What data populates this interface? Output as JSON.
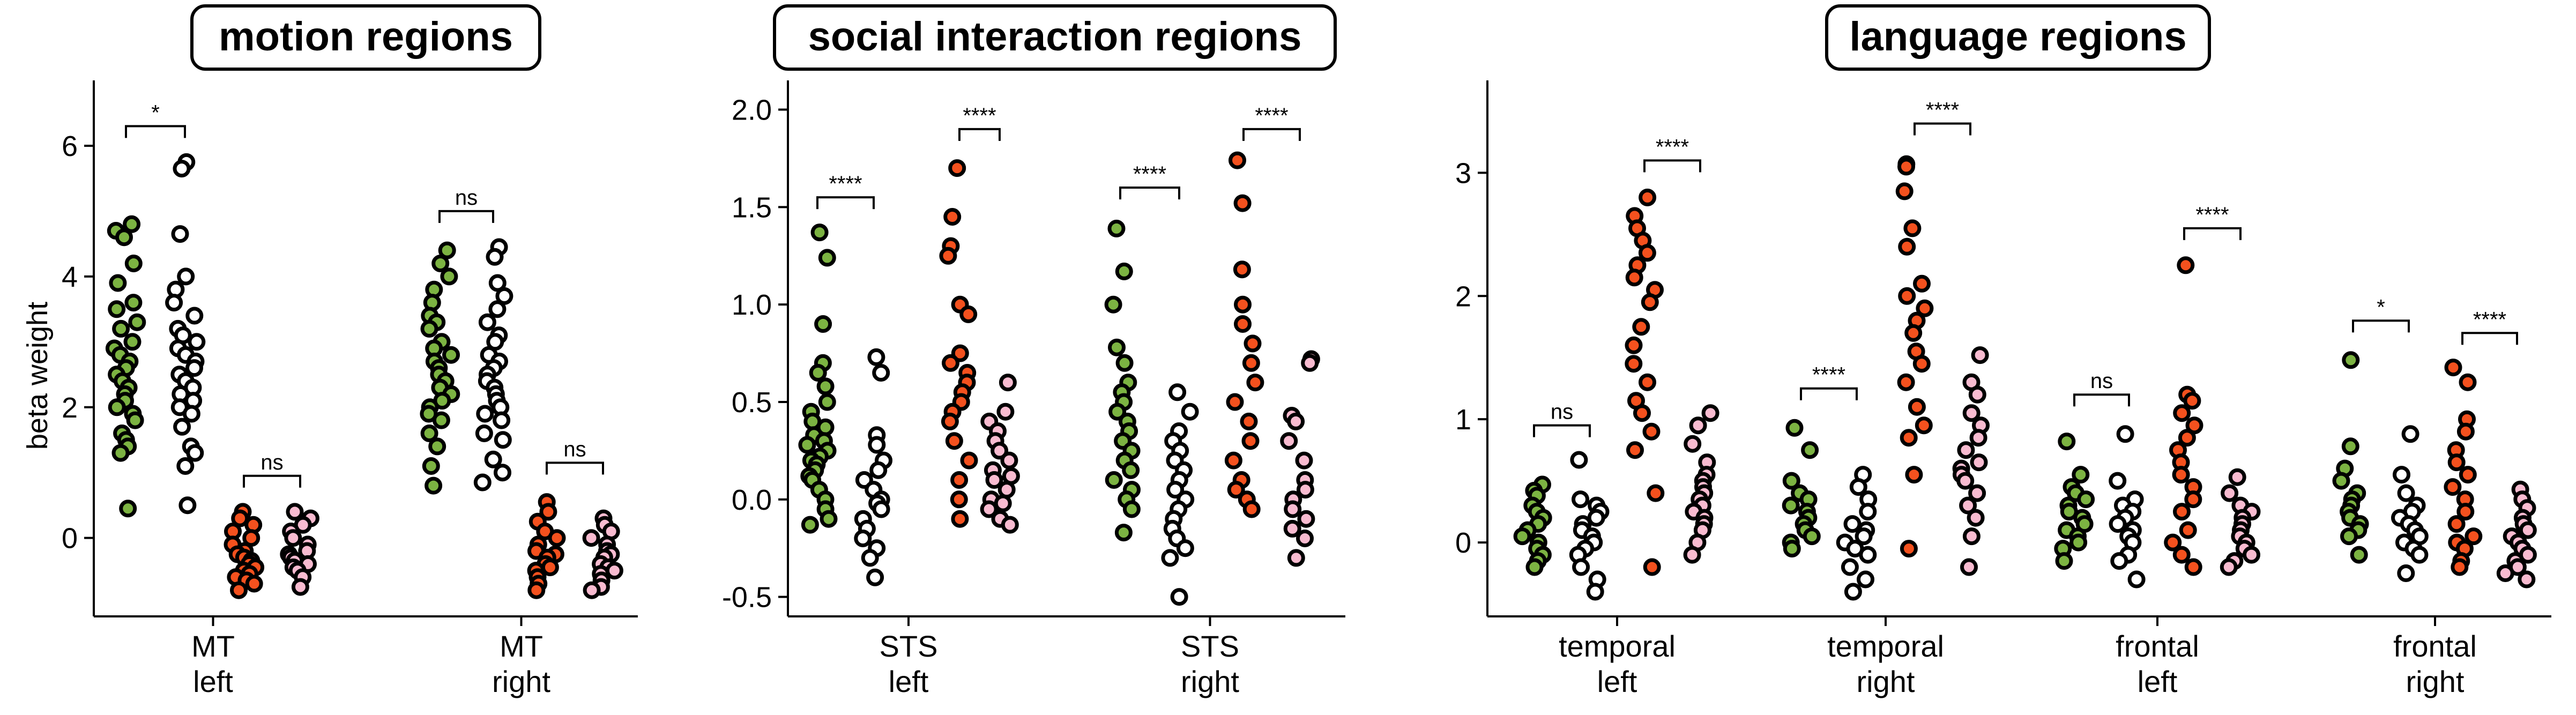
{
  "ylabel": "beta weight",
  "colors": {
    "green": "#7cb342",
    "orange": "#f4511e",
    "white": "#ffffff",
    "pink": "#f8bbd0",
    "edge": "#000000"
  },
  "chart_data": [
    {
      "type": "strip",
      "title": "motion regions",
      "ylabel": "beta weight",
      "ylim": [
        -1.2,
        7.0
      ],
      "yticks": [
        0,
        2,
        4,
        6
      ],
      "groups": [
        {
          "label": [
            "MT",
            "left"
          ],
          "columns": [
            {
              "fill": "green",
              "values": [
                4.8,
                4.7,
                4.6,
                4.2,
                3.9,
                3.6,
                3.5,
                3.3,
                3.2,
                3.0,
                2.9,
                2.8,
                2.7,
                2.6,
                2.5,
                2.4,
                2.3,
                2.2,
                2.1,
                2.0,
                1.9,
                1.8,
                1.6,
                1.5,
                1.4,
                1.3,
                0.45
              ]
            },
            {
              "fill": "white",
              "values": [
                5.75,
                5.65,
                4.65,
                4.0,
                3.8,
                3.6,
                3.4,
                3.2,
                3.1,
                3.0,
                2.9,
                2.8,
                2.7,
                2.6,
                2.5,
                2.4,
                2.3,
                2.2,
                2.1,
                2.0,
                1.9,
                1.7,
                1.4,
                1.3,
                1.1,
                0.5
              ]
            },
            {
              "fill": "orange",
              "values": [
                0.4,
                0.3,
                0.2,
                0.1,
                0.0,
                -0.1,
                -0.2,
                -0.25,
                -0.3,
                -0.35,
                -0.4,
                -0.45,
                -0.5,
                -0.55,
                -0.6,
                -0.65,
                -0.7,
                -0.8
              ]
            },
            {
              "fill": "pink",
              "values": [
                0.4,
                0.3,
                0.2,
                0.1,
                0.0,
                -0.1,
                -0.2,
                -0.25,
                -0.3,
                -0.35,
                -0.4,
                -0.45,
                -0.5,
                -0.6,
                -0.75
              ]
            }
          ]
        },
        {
          "label": [
            "MT",
            "right"
          ],
          "columns": [
            {
              "fill": "green",
              "values": [
                4.4,
                4.2,
                4.0,
                3.8,
                3.6,
                3.4,
                3.3,
                3.2,
                3.0,
                2.9,
                2.8,
                2.7,
                2.6,
                2.5,
                2.4,
                2.3,
                2.2,
                2.1,
                2.0,
                1.9,
                1.8,
                1.6,
                1.4,
                1.1,
                0.8
              ]
            },
            {
              "fill": "white",
              "values": [
                4.45,
                4.3,
                3.9,
                3.7,
                3.5,
                3.3,
                3.1,
                3.0,
                2.8,
                2.7,
                2.6,
                2.5,
                2.4,
                2.3,
                2.2,
                2.1,
                2.0,
                1.9,
                1.8,
                1.6,
                1.5,
                1.2,
                1.0,
                0.85
              ]
            },
            {
              "fill": "orange",
              "values": [
                0.55,
                0.4,
                0.25,
                0.1,
                0.0,
                -0.1,
                -0.2,
                -0.25,
                -0.3,
                -0.4,
                -0.45,
                -0.5,
                -0.6,
                -0.7,
                -0.8
              ]
            },
            {
              "fill": "pink",
              "values": [
                0.3,
                0.2,
                0.1,
                0.0,
                -0.1,
                -0.2,
                -0.25,
                -0.3,
                -0.4,
                -0.45,
                -0.5,
                -0.55,
                -0.65,
                -0.75,
                -0.8
              ]
            }
          ]
        }
      ],
      "brackets": [
        {
          "group": 0,
          "from": 0,
          "to": 1,
          "label": "*",
          "y": 6.3
        },
        {
          "group": 0,
          "from": 2,
          "to": 3,
          "label": "ns",
          "y": 0.95
        },
        {
          "group": 1,
          "from": 0,
          "to": 1,
          "label": "ns",
          "y": 5.0
        },
        {
          "group": 1,
          "from": 2,
          "to": 3,
          "label": "ns",
          "y": 1.15
        }
      ]
    },
    {
      "type": "strip",
      "title": "social interaction regions",
      "ylabel": "",
      "ylim": [
        -0.6,
        2.15
      ],
      "yticks": [
        -0.5,
        0.0,
        0.5,
        1.0,
        1.5,
        2.0
      ],
      "groups": [
        {
          "label": [
            "STS",
            "left"
          ],
          "columns": [
            {
              "fill": "green",
              "values": [
                1.37,
                1.24,
                0.9,
                0.7,
                0.65,
                0.58,
                0.5,
                0.45,
                0.4,
                0.37,
                0.33,
                0.3,
                0.28,
                0.25,
                0.22,
                0.2,
                0.18,
                0.15,
                0.12,
                0.1,
                0.05,
                0.0,
                -0.05,
                -0.1,
                -0.13
              ]
            },
            {
              "fill": "white",
              "values": [
                0.73,
                0.65,
                0.33,
                0.28,
                0.2,
                0.15,
                0.1,
                0.05,
                0.0,
                -0.02,
                -0.05,
                -0.1,
                -0.15,
                -0.2,
                -0.25,
                -0.3,
                -0.4
              ]
            },
            {
              "fill": "orange",
              "values": [
                1.7,
                1.45,
                1.3,
                1.25,
                1.0,
                0.95,
                0.75,
                0.7,
                0.65,
                0.6,
                0.55,
                0.5,
                0.45,
                0.4,
                0.3,
                0.2,
                0.1,
                0.0,
                -0.1
              ]
            },
            {
              "fill": "pink",
              "values": [
                0.6,
                0.45,
                0.4,
                0.35,
                0.3,
                0.25,
                0.2,
                0.15,
                0.12,
                0.1,
                0.05,
                0.0,
                -0.02,
                -0.05,
                -0.1,
                -0.13
              ]
            }
          ]
        },
        {
          "label": [
            "STS",
            "right"
          ],
          "columns": [
            {
              "fill": "green",
              "values": [
                1.39,
                1.17,
                1.0,
                0.78,
                0.7,
                0.6,
                0.55,
                0.5,
                0.45,
                0.4,
                0.35,
                0.3,
                0.25,
                0.2,
                0.15,
                0.1,
                0.05,
                0.0,
                -0.05,
                -0.17
              ]
            },
            {
              "fill": "white",
              "values": [
                0.55,
                0.45,
                0.35,
                0.3,
                0.25,
                0.2,
                0.15,
                0.1,
                0.05,
                0.0,
                -0.05,
                -0.1,
                -0.15,
                -0.2,
                -0.25,
                -0.3,
                -0.5
              ]
            },
            {
              "fill": "orange",
              "values": [
                1.74,
                1.52,
                1.18,
                1.0,
                0.9,
                0.8,
                0.7,
                0.6,
                0.5,
                0.4,
                0.3,
                0.2,
                0.1,
                0.05,
                0.0,
                -0.05
              ]
            },
            {
              "fill": "pink",
              "values": [
                0.72,
                0.7,
                0.43,
                0.4,
                0.3,
                0.2,
                0.1,
                0.05,
                0.0,
                -0.05,
                -0.1,
                -0.15,
                -0.2,
                -0.3
              ]
            }
          ]
        }
      ],
      "brackets": [
        {
          "group": 0,
          "from": 0,
          "to": 1,
          "label": "****",
          "y": 1.55
        },
        {
          "group": 0,
          "from": 2,
          "to": 3,
          "label": "****",
          "y": 1.9
        },
        {
          "group": 1,
          "from": 0,
          "to": 1,
          "label": "****",
          "y": 1.6
        },
        {
          "group": 1,
          "from": 2,
          "to": 3,
          "label": "****",
          "y": 1.9
        }
      ]
    },
    {
      "type": "strip",
      "title": "language regions",
      "ylabel": "",
      "ylim": [
        -0.6,
        3.75
      ],
      "yticks": [
        0,
        1,
        2,
        3
      ],
      "groups": [
        {
          "label": [
            "temporal",
            "left"
          ],
          "columns": [
            {
              "fill": "green",
              "values": [
                0.47,
                0.42,
                0.38,
                0.3,
                0.25,
                0.2,
                0.15,
                0.1,
                0.05,
                0.0,
                -0.05,
                -0.1,
                -0.15,
                -0.2
              ]
            },
            {
              "fill": "white",
              "values": [
                0.67,
                0.35,
                0.3,
                0.25,
                0.2,
                0.15,
                0.1,
                0.05,
                0.0,
                -0.05,
                -0.1,
                -0.2,
                -0.3,
                -0.4
              ]
            },
            {
              "fill": "orange",
              "values": [
                2.8,
                2.65,
                2.55,
                2.45,
                2.35,
                2.25,
                2.15,
                2.05,
                1.95,
                1.75,
                1.6,
                1.45,
                1.3,
                1.15,
                1.05,
                0.9,
                0.75,
                0.4,
                -0.2
              ]
            },
            {
              "fill": "pink",
              "values": [
                1.05,
                0.95,
                0.8,
                0.65,
                0.55,
                0.5,
                0.45,
                0.4,
                0.35,
                0.3,
                0.25,
                0.2,
                0.15,
                0.1,
                0.0,
                -0.1
              ]
            }
          ]
        },
        {
          "label": [
            "temporal",
            "right"
          ],
          "columns": [
            {
              "fill": "green",
              "values": [
                0.93,
                0.75,
                0.5,
                0.4,
                0.35,
                0.3,
                0.25,
                0.2,
                0.15,
                0.1,
                0.05,
                0.0,
                -0.05
              ]
            },
            {
              "fill": "white",
              "values": [
                0.55,
                0.45,
                0.35,
                0.25,
                0.15,
                0.1,
                0.05,
                0.0,
                -0.05,
                -0.1,
                -0.2,
                -0.3,
                -0.4
              ]
            },
            {
              "fill": "orange",
              "values": [
                3.07,
                3.05,
                2.85,
                2.55,
                2.4,
                2.1,
                2.0,
                1.9,
                1.8,
                1.7,
                1.55,
                1.45,
                1.3,
                1.1,
                0.95,
                0.85,
                0.55,
                -0.05
              ]
            },
            {
              "fill": "pink",
              "values": [
                1.52,
                1.3,
                1.2,
                1.05,
                0.95,
                0.85,
                0.75,
                0.65,
                0.6,
                0.55,
                0.5,
                0.4,
                0.3,
                0.2,
                0.05,
                -0.2
              ]
            }
          ]
        },
        {
          "label": [
            "frontal",
            "left"
          ],
          "columns": [
            {
              "fill": "green",
              "values": [
                0.82,
                0.55,
                0.45,
                0.4,
                0.35,
                0.3,
                0.25,
                0.2,
                0.15,
                0.1,
                0.05,
                0.0,
                -0.05,
                -0.15
              ]
            },
            {
              "fill": "white",
              "values": [
                0.88,
                0.5,
                0.35,
                0.3,
                0.25,
                0.2,
                0.15,
                0.1,
                0.05,
                0.0,
                -0.1,
                -0.15,
                -0.3
              ]
            },
            {
              "fill": "orange",
              "values": [
                2.25,
                1.2,
                1.15,
                1.05,
                0.95,
                0.85,
                0.75,
                0.65,
                0.55,
                0.45,
                0.35,
                0.25,
                0.1,
                0.0,
                -0.1,
                -0.2
              ]
            },
            {
              "fill": "pink",
              "values": [
                0.53,
                0.4,
                0.3,
                0.25,
                0.2,
                0.15,
                0.1,
                0.05,
                0.0,
                -0.05,
                -0.1,
                -0.15,
                -0.2
              ]
            }
          ]
        },
        {
          "label": [
            "frontal",
            "right"
          ],
          "columns": [
            {
              "fill": "green",
              "values": [
                1.48,
                0.78,
                0.6,
                0.5,
                0.4,
                0.35,
                0.3,
                0.25,
                0.2,
                0.15,
                0.1,
                0.05,
                -0.1
              ]
            },
            {
              "fill": "white",
              "values": [
                0.88,
                0.55,
                0.4,
                0.3,
                0.25,
                0.2,
                0.15,
                0.1,
                0.05,
                0.0,
                -0.05,
                -0.1,
                -0.25
              ]
            },
            {
              "fill": "orange",
              "values": [
                1.42,
                1.3,
                1.0,
                0.9,
                0.75,
                0.65,
                0.55,
                0.45,
                0.35,
                0.25,
                0.15,
                0.05,
                0.0,
                -0.05,
                -0.15,
                -0.2
              ]
            },
            {
              "fill": "pink",
              "values": [
                0.43,
                0.35,
                0.28,
                0.2,
                0.15,
                0.1,
                0.05,
                0.0,
                -0.05,
                -0.1,
                -0.15,
                -0.2,
                -0.25,
                -0.3
              ]
            }
          ]
        }
      ],
      "brackets": [
        {
          "group": 0,
          "from": 0,
          "to": 1,
          "label": "ns",
          "y": 0.95
        },
        {
          "group": 0,
          "from": 2,
          "to": 3,
          "label": "****",
          "y": 3.1
        },
        {
          "group": 1,
          "from": 0,
          "to": 1,
          "label": "****",
          "y": 1.25
        },
        {
          "group": 1,
          "from": 2,
          "to": 3,
          "label": "****",
          "y": 3.4
        },
        {
          "group": 2,
          "from": 0,
          "to": 1,
          "label": "ns",
          "y": 1.2
        },
        {
          "group": 2,
          "from": 2,
          "to": 3,
          "label": "****",
          "y": 2.55
        },
        {
          "group": 3,
          "from": 0,
          "to": 1,
          "label": "*",
          "y": 1.8
        },
        {
          "group": 3,
          "from": 2,
          "to": 3,
          "label": "****",
          "y": 1.7
        }
      ]
    }
  ]
}
